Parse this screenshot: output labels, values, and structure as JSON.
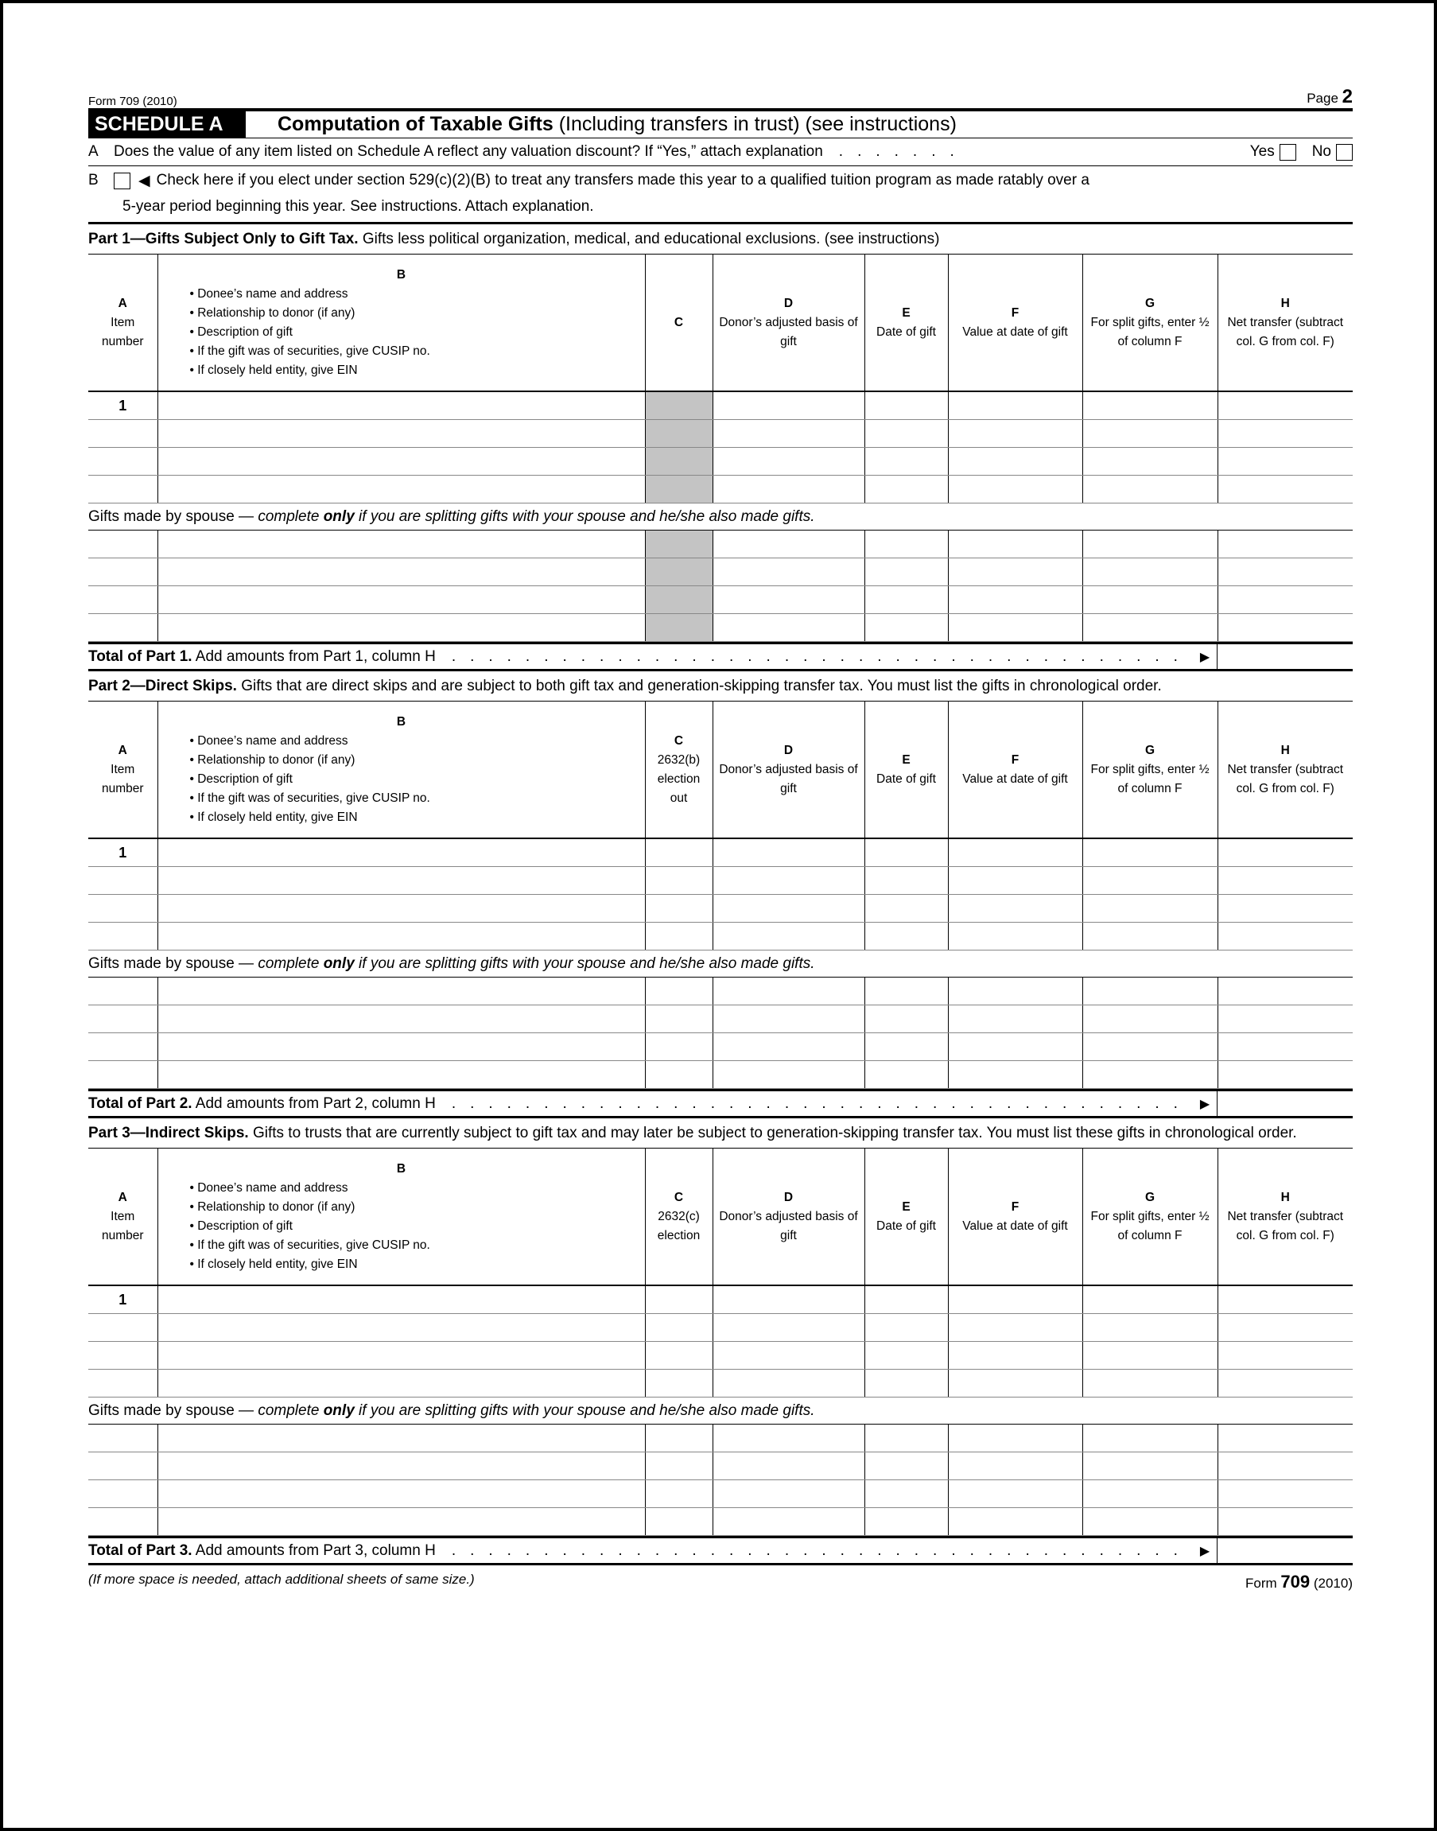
{
  "header": {
    "form_label": "Form 709 (2010)",
    "page_word": "Page",
    "page_num": "2"
  },
  "schedule": {
    "tag": "SCHEDULE A",
    "title_bold": "Computation of Taxable Gifts",
    "title_rest": " (Including transfers in trust) (see instructions)"
  },
  "lineA": {
    "label": "A",
    "text": "Does the value of any item listed on Schedule A reflect any valuation discount? If “Yes,” attach explanation",
    "yes": "Yes",
    "no": "No"
  },
  "lineB": {
    "label": "B",
    "text1": "Check here if you elect under section 529(c)(2)(B) to treat any transfers made this year to a qualified tuition program as made ratably over a",
    "text2": "5-year period beginning this year. See instructions. Attach explanation."
  },
  "columns": {
    "A": {
      "letter": "A",
      "text": "Item number"
    },
    "B": {
      "letter": "B",
      "bullets": [
        "• Donee’s name and address",
        "• Relationship to donor (if any)",
        "• Description of gift",
        "• If the gift was of securities, give CUSIP no.",
        "• If closely held entity, give EIN"
      ]
    },
    "D": {
      "letter": "D",
      "text": "Donor’s adjusted basis of gift"
    },
    "E": {
      "letter": "E",
      "text": "Date of gift"
    },
    "F": {
      "letter": "F",
      "text": "Value at date of gift"
    },
    "G": {
      "letter": "G",
      "text": "For split gifts, enter ½ of column F"
    },
    "H": {
      "letter": "H",
      "text": "Net transfer (subtract col. G from col. F)"
    }
  },
  "spouse": {
    "lead": "Gifts made by spouse —",
    "complete": "complete ",
    "only": "only",
    "rest": " if you are splitting gifts with your spouse and he/she also made gifts."
  },
  "parts": [
    {
      "title_bold": "Part 1—Gifts Subject Only to Gift Tax.",
      "title_rest": " Gifts less political organization, medical, and educational exclusions. (see instructions)",
      "colC": {
        "letter": "C",
        "text": ""
      },
      "shadeC": true,
      "item_number": "1",
      "total_bold": "Total of Part 1.",
      "total_rest": " Add amounts from Part 1, column H"
    },
    {
      "title_bold": "Part 2—Direct Skips.",
      "title_rest": " Gifts that are direct skips and are subject to both gift tax and generation-skipping transfer tax. You must list the gifts in chronological order.",
      "colC": {
        "letter": "C",
        "text": "2632(b) election out"
      },
      "shadeC": false,
      "item_number": "1",
      "total_bold": "Total of Part 2.",
      "total_rest": " Add amounts from Part 2, column H"
    },
    {
      "title_bold": "Part 3—Indirect Skips.",
      "title_rest": " Gifts to trusts that are currently subject to gift tax and may later be subject to generation-skipping transfer tax. You must list these gifts in chronological order.",
      "colC": {
        "letter": "C",
        "text": "2632(c) election"
      },
      "shadeC": false,
      "item_number": "1",
      "total_bold": "Total of Part 3.",
      "total_rest": " Add amounts from Part 3, column H"
    }
  ],
  "footer": {
    "note": "(If more space is needed, attach additional sheets of same size.)",
    "form_word": "Form",
    "form_num": "709",
    "year": "(2010)"
  }
}
